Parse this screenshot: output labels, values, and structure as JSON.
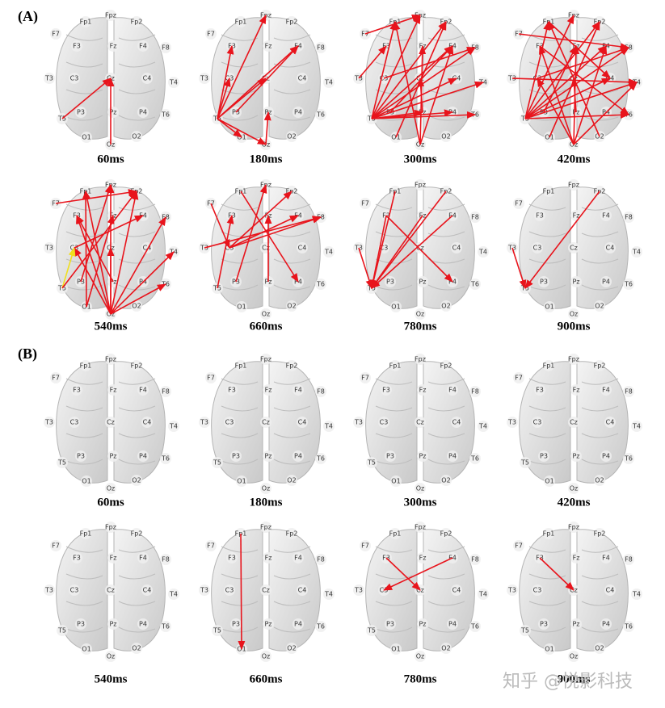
{
  "electrodes": [
    "Fpz",
    "Fp1",
    "Fp2",
    "F7",
    "F3",
    "Fz",
    "F4",
    "F8",
    "T3",
    "C3",
    "Cz",
    "C4",
    "T4",
    "T5",
    "P3",
    "Pz",
    "P4",
    "T6",
    "O1",
    "Oz",
    "O2"
  ],
  "edge_color": "#e8141c",
  "panels": [
    {
      "label": "(A)",
      "brains": [
        {
          "time": "60ms",
          "edges": [
            {
              "from": "T5",
              "to": "Cz"
            },
            {
              "from": "Oz",
              "to": "Cz"
            }
          ]
        },
        {
          "time": "180ms",
          "edges": [
            {
              "from": "T5",
              "to": "Fpz"
            },
            {
              "from": "T5",
              "to": "F3"
            },
            {
              "from": "T5",
              "to": "F4"
            },
            {
              "from": "P3",
              "to": "F4"
            },
            {
              "from": "T5",
              "to": "Cz"
            },
            {
              "from": "T5",
              "to": "C3"
            },
            {
              "from": "Oz",
              "to": "Pz"
            },
            {
              "from": "T5",
              "to": "O1"
            },
            {
              "from": "T5",
              "to": "Oz"
            }
          ]
        },
        {
          "time": "300ms",
          "edges": [
            {
              "from": "T5",
              "to": "Fp1"
            },
            {
              "from": "T5",
              "to": "Fpz"
            },
            {
              "from": "T5",
              "to": "Fp2"
            },
            {
              "from": "T5",
              "to": "F4"
            },
            {
              "from": "T5",
              "to": "F8"
            },
            {
              "from": "T5",
              "to": "C4"
            },
            {
              "from": "T5",
              "to": "T4"
            },
            {
              "from": "T5",
              "to": "P4"
            },
            {
              "from": "T5",
              "to": "T6"
            },
            {
              "from": "Oz",
              "to": "Fp1"
            },
            {
              "from": "Oz",
              "to": "Fz"
            },
            {
              "from": "Oz",
              "to": "F4"
            },
            {
              "from": "O1",
              "to": "Fp2"
            },
            {
              "from": "P3",
              "to": "F4"
            },
            {
              "from": "Pz",
              "to": "Cz"
            },
            {
              "from": "T3",
              "to": "F3"
            },
            {
              "from": "F7",
              "to": "Fpz"
            },
            {
              "from": "C3",
              "to": "F8"
            },
            {
              "from": "T5",
              "to": "Pz"
            }
          ]
        },
        {
          "time": "420ms",
          "edges": [
            {
              "from": "T5",
              "to": "Fp1"
            },
            {
              "from": "T5",
              "to": "Fpz"
            },
            {
              "from": "T5",
              "to": "Fp2"
            },
            {
              "from": "T5",
              "to": "F4"
            },
            {
              "from": "T5",
              "to": "F8"
            },
            {
              "from": "T5",
              "to": "C4"
            },
            {
              "from": "T5",
              "to": "T4"
            },
            {
              "from": "T5",
              "to": "T6"
            },
            {
              "from": "Oz",
              "to": "F3"
            },
            {
              "from": "Oz",
              "to": "Fz"
            },
            {
              "from": "Oz",
              "to": "F4"
            },
            {
              "from": "Oz",
              "to": "T4"
            },
            {
              "from": "Oz",
              "to": "C3"
            },
            {
              "from": "O1",
              "to": "Fp2"
            },
            {
              "from": "O2",
              "to": "Fp1"
            },
            {
              "from": "F7",
              "to": "F8"
            },
            {
              "from": "T3",
              "to": "T4"
            },
            {
              "from": "F3",
              "to": "T6"
            },
            {
              "from": "Fp1",
              "to": "C4"
            },
            {
              "from": "P3",
              "to": "Fz"
            },
            {
              "from": "Pz",
              "to": "Cz"
            },
            {
              "from": "C3",
              "to": "F8"
            }
          ]
        },
        {
          "time": "540ms",
          "edges": [
            {
              "from": "Oz",
              "to": "Fp1"
            },
            {
              "from": "Oz",
              "to": "Fpz"
            },
            {
              "from": "Oz",
              "to": "Fp2"
            },
            {
              "from": "Oz",
              "to": "F3"
            },
            {
              "from": "Oz",
              "to": "F8"
            },
            {
              "from": "Oz",
              "to": "T4"
            },
            {
              "from": "Oz",
              "to": "C3"
            },
            {
              "from": "Oz",
              "to": "Cz"
            },
            {
              "from": "Oz",
              "to": "T6"
            },
            {
              "from": "O1",
              "to": "Fp1"
            },
            {
              "from": "O1",
              "to": "Fz"
            },
            {
              "from": "P3",
              "to": "Fpz"
            },
            {
              "from": "T5",
              "to": "C3",
              "color": "#f0e020"
            },
            {
              "from": "T5",
              "to": "Fp2"
            },
            {
              "from": "F7",
              "to": "Fp2"
            },
            {
              "from": "C3",
              "to": "F4"
            },
            {
              "from": "Pz",
              "to": "F3"
            }
          ]
        },
        {
          "time": "660ms",
          "edges": [
            {
              "from": "T5",
              "to": "F3"
            },
            {
              "from": "F7",
              "to": "C3"
            },
            {
              "from": "C3",
              "to": "F8"
            },
            {
              "from": "C3",
              "to": "Fp2"
            },
            {
              "from": "P3",
              "to": "Fpz"
            },
            {
              "from": "Fp1",
              "to": "P4"
            },
            {
              "from": "Pz",
              "to": "Fz"
            },
            {
              "from": "C3",
              "to": "F4"
            },
            {
              "from": "T3",
              "to": "F8"
            }
          ]
        },
        {
          "time": "780ms",
          "edges": [
            {
              "from": "Fp1",
              "to": "T5"
            },
            {
              "from": "F3",
              "to": "T5"
            },
            {
              "from": "Fz",
              "to": "T5"
            },
            {
              "from": "Fp2",
              "to": "T5"
            },
            {
              "from": "F4",
              "to": "T5"
            },
            {
              "from": "T3",
              "to": "T5"
            },
            {
              "from": "F3",
              "to": "P4"
            }
          ]
        },
        {
          "time": "900ms",
          "edges": [
            {
              "from": "Fp2",
              "to": "T5"
            },
            {
              "from": "T3",
              "to": "T5"
            }
          ]
        }
      ]
    },
    {
      "label": "(B)",
      "brains": [
        {
          "time": "60ms",
          "edges": []
        },
        {
          "time": "180ms",
          "edges": []
        },
        {
          "time": "300ms",
          "edges": []
        },
        {
          "time": "420ms",
          "edges": []
        },
        {
          "time": "540ms",
          "edges": []
        },
        {
          "time": "660ms",
          "edges": [
            {
              "from": "Fp1",
              "to": "O1"
            }
          ]
        },
        {
          "time": "780ms",
          "edges": [
            {
              "from": "F3",
              "to": "Cz"
            },
            {
              "from": "F4",
              "to": "C3"
            }
          ]
        },
        {
          "time": "900ms",
          "edges": [
            {
              "from": "F3",
              "to": "Cz"
            }
          ]
        }
      ]
    }
  ],
  "watermark": "知乎 @悦影科技"
}
